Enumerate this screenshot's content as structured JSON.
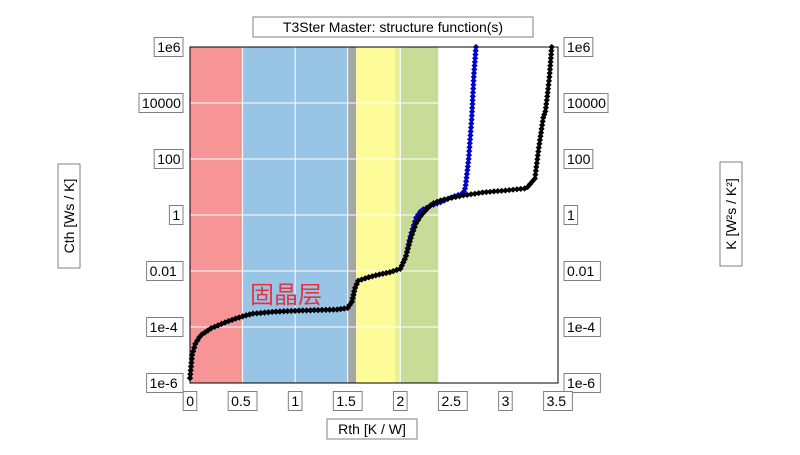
{
  "chart_data": {
    "type": "line",
    "title": "T3Ster Master: structure function(s)",
    "xlabel": "Rth  [K / W]",
    "ylabel_left": "Cth  [Ws / K]",
    "ylabel_right": "K  [W²s / K²]",
    "xlim": [
      0,
      3.5
    ],
    "ylim": [
      1e-06,
      1000000.0
    ],
    "yscale": "log",
    "grid": true,
    "x_ticks": [
      "0",
      "0.5",
      "1",
      "1.5",
      "2",
      "2.5",
      "3",
      "3.5"
    ],
    "y_ticks": [
      "1e-6",
      "1e-4",
      "0.01",
      "1",
      "100",
      "10000",
      "1e6"
    ],
    "y_ticks_right": [
      "1e-6",
      "1e-4",
      "0.01",
      "1",
      "100",
      "10000",
      "1e6"
    ],
    "annotation": "固晶层",
    "regions": [
      {
        "x0": 0.0,
        "x1": 0.49,
        "color": "#f79596"
      },
      {
        "x0": 0.49,
        "x1": 1.5,
        "color": "#98c5e6"
      },
      {
        "x0": 1.5,
        "x1": 1.58,
        "color": "#a6a6a6"
      },
      {
        "x0": 1.58,
        "x1": 1.95,
        "color": "#fdfc99"
      },
      {
        "x0": 1.95,
        "x1": 2.0,
        "color": "#e6f0a0"
      },
      {
        "x0": 2.0,
        "x1": 2.36,
        "color": "#c9dc97"
      }
    ],
    "series": [
      {
        "color": "#0000cc",
        "points": [
          [
            0.0,
            1.5e-06
          ],
          [
            0.02,
            1e-05
          ],
          [
            0.05,
            2.5e-05
          ],
          [
            0.1,
            5e-05
          ],
          [
            0.2,
            9e-05
          ],
          [
            0.3,
            0.00013
          ],
          [
            0.4,
            0.00018
          ],
          [
            0.5,
            0.00024
          ],
          [
            0.6,
            0.0003
          ],
          [
            0.8,
            0.00035
          ],
          [
            1.0,
            0.00038
          ],
          [
            1.2,
            0.0004
          ],
          [
            1.4,
            0.00042
          ],
          [
            1.5,
            0.00048
          ],
          [
            1.54,
            0.0008
          ],
          [
            1.57,
            0.0025
          ],
          [
            1.6,
            0.0045
          ],
          [
            1.7,
            0.006
          ],
          [
            1.8,
            0.0075
          ],
          [
            1.9,
            0.009
          ],
          [
            2.0,
            0.012
          ],
          [
            2.05,
            0.03
          ],
          [
            2.1,
            0.2
          ],
          [
            2.15,
            0.8
          ],
          [
            2.2,
            1.5
          ],
          [
            2.3,
            2.2
          ],
          [
            2.4,
            3.0
          ],
          [
            2.5,
            4.5
          ],
          [
            2.6,
            6
          ],
          [
            2.62,
            10
          ],
          [
            2.65,
            100
          ],
          [
            2.68,
            3000
          ],
          [
            2.7,
            100000.0
          ],
          [
            2.72,
            1000000.0
          ]
        ]
      },
      {
        "color": "#000000",
        "points": [
          [
            0.0,
            1.5e-06
          ],
          [
            0.02,
            1e-05
          ],
          [
            0.05,
            2.5e-05
          ],
          [
            0.1,
            5e-05
          ],
          [
            0.2,
            9e-05
          ],
          [
            0.3,
            0.00013
          ],
          [
            0.4,
            0.00018
          ],
          [
            0.5,
            0.00024
          ],
          [
            0.6,
            0.0003
          ],
          [
            0.8,
            0.00035
          ],
          [
            1.0,
            0.00038
          ],
          [
            1.2,
            0.0004
          ],
          [
            1.4,
            0.00042
          ],
          [
            1.5,
            0.00048
          ],
          [
            1.54,
            0.0008
          ],
          [
            1.57,
            0.0025
          ],
          [
            1.6,
            0.0045
          ],
          [
            1.7,
            0.006
          ],
          [
            1.8,
            0.0075
          ],
          [
            1.9,
            0.009
          ],
          [
            2.0,
            0.012
          ],
          [
            2.05,
            0.03
          ],
          [
            2.1,
            0.15
          ],
          [
            2.15,
            0.5
          ],
          [
            2.2,
            1.0
          ],
          [
            2.3,
            2.5
          ],
          [
            2.4,
            3.5
          ],
          [
            2.6,
            5
          ],
          [
            2.8,
            6.5
          ],
          [
            3.0,
            7.5
          ],
          [
            3.2,
            9
          ],
          [
            3.28,
            20
          ],
          [
            3.32,
            300
          ],
          [
            3.36,
            3000
          ],
          [
            3.38,
            5000
          ],
          [
            3.4,
            20000.0
          ],
          [
            3.42,
            100000.0
          ],
          [
            3.44,
            1000000.0
          ]
        ]
      }
    ]
  }
}
